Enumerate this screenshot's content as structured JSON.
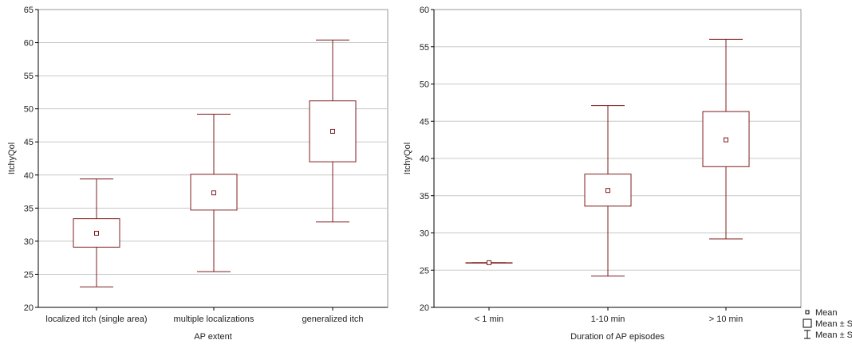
{
  "colors": {
    "mark": "#7f1d1d",
    "grid": "#c8c8c8",
    "frame": "#999999",
    "axis": "#000000",
    "text": "#222222"
  },
  "chart_data": [
    {
      "type": "boxplot",
      "xlabel": "AP extent",
      "ylabel": "ItchyQol",
      "ylim": [
        20,
        65
      ],
      "yticks": [
        20,
        25,
        30,
        35,
        40,
        45,
        50,
        55,
        60,
        65
      ],
      "grid": true,
      "categories": [
        "localized itch (single area)",
        "multiple localizations",
        "generalized itch"
      ],
      "mean": [
        31.2,
        37.3,
        46.6
      ],
      "se_low": [
        29.1,
        34.7,
        42.0
      ],
      "se_high": [
        33.4,
        40.1,
        51.2
      ],
      "sd_low": [
        23.1,
        25.4,
        32.9
      ],
      "sd_high": [
        39.4,
        49.2,
        60.4
      ]
    },
    {
      "type": "boxplot",
      "xlabel": "Duration of AP episodes",
      "ylabel": "ItchyQol",
      "ylim": [
        20,
        60
      ],
      "yticks": [
        20,
        25,
        30,
        35,
        40,
        45,
        50,
        55,
        60
      ],
      "grid": true,
      "categories": [
        "< 1 min",
        "1-10 min",
        "> 10 min"
      ],
      "mean": [
        26.0,
        35.7,
        42.5
      ],
      "se_low": [
        26.0,
        33.6,
        38.9
      ],
      "se_high": [
        26.0,
        37.9,
        46.3
      ],
      "sd_low": [
        26.0,
        24.2,
        29.2
      ],
      "sd_high": [
        26.0,
        47.1,
        56.0
      ]
    }
  ],
  "legend": {
    "placement": "bottom-right",
    "items": [
      {
        "label": "Mean",
        "icon": "mean-square-icon"
      },
      {
        "label": "Mean ± SE",
        "icon": "box-icon"
      },
      {
        "label": "Mean ± SD",
        "icon": "whisker-icon"
      }
    ]
  }
}
